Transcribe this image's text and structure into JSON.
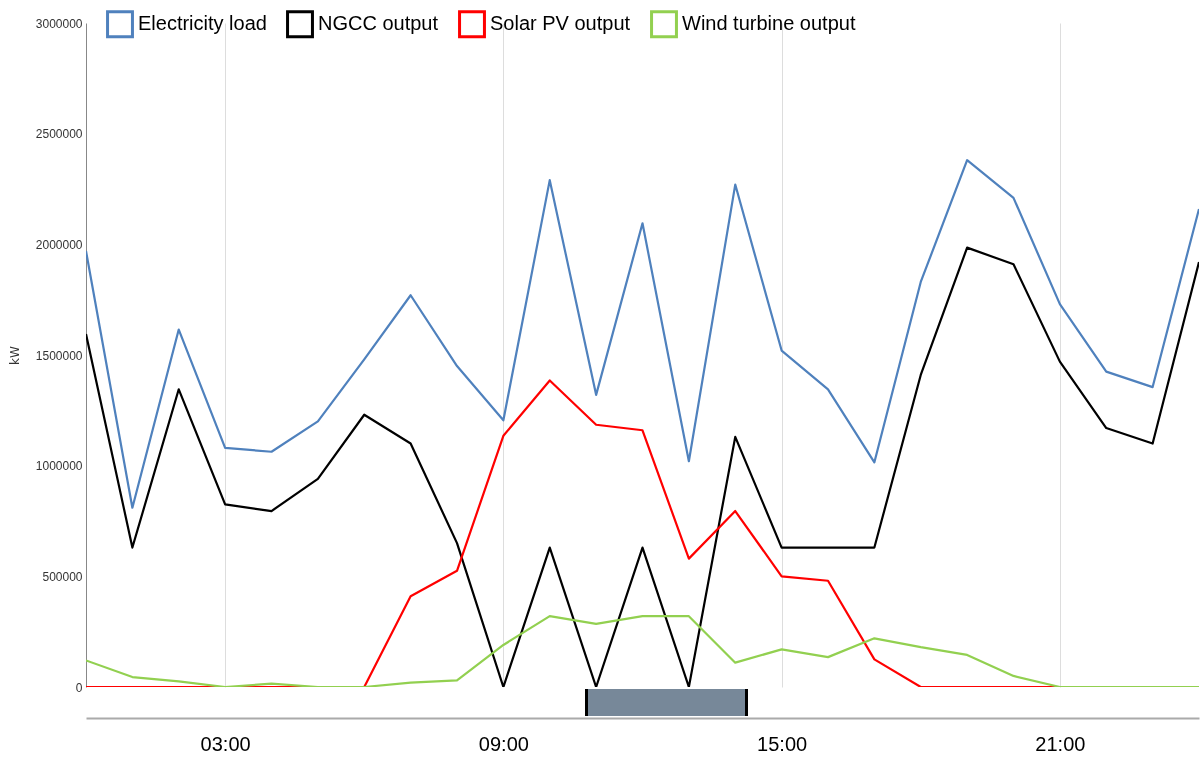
{
  "chart_data": {
    "type": "line",
    "ylabel": "kW",
    "x": [
      0,
      1,
      2,
      3,
      4,
      5,
      6,
      7,
      8,
      9,
      10,
      11,
      12,
      13,
      14,
      15,
      16,
      17,
      18,
      19,
      20,
      21,
      22,
      23,
      24
    ],
    "xlim": [
      0,
      24
    ],
    "xticks": [
      {
        "value": 3,
        "label": "03:00"
      },
      {
        "value": 9,
        "label": "09:00"
      },
      {
        "value": 15,
        "label": "15:00"
      },
      {
        "value": 21,
        "label": "21:00"
      }
    ],
    "ylim": [
      0,
      3000000
    ],
    "yticks": [
      0,
      500000,
      1000000,
      1500000,
      2000000,
      2500000,
      3000000
    ],
    "grid": "x",
    "legend": "top",
    "marker": "none",
    "line_style": "solid",
    "series": [
      {
        "name": "Electricity load",
        "color": "#4f81bd",
        "values": [
          1970000,
          810000,
          1615000,
          1080000,
          1063000,
          1200000,
          1480000,
          1770000,
          1450000,
          1205000,
          2290000,
          1320000,
          2095000,
          1020000,
          2270000,
          1520000,
          1345000,
          1015000,
          1830000,
          2380000,
          2210000,
          1730000,
          1425000,
          1355000,
          2160000
        ]
      },
      {
        "name": "NGCC output",
        "color": "#000000",
        "values": [
          1595000,
          630000,
          1345000,
          825000,
          795000,
          940000,
          1230000,
          1100000,
          650000,
          0,
          630000,
          0,
          630000,
          0,
          1130000,
          630000,
          630000,
          630000,
          1410000,
          1985000,
          1910000,
          1470000,
          1170000,
          1100000,
          1920000
        ]
      },
      {
        "name": "Solar PV output",
        "color": "#ff0000",
        "values": [
          0,
          0,
          0,
          0,
          0,
          0,
          0,
          410000,
          525000,
          1135000,
          1385000,
          1185000,
          1160000,
          580000,
          795000,
          500000,
          480000,
          125000,
          0,
          0,
          0,
          0,
          0,
          null,
          null
        ]
      },
      {
        "name": "Wind turbine output",
        "color": "#92d050",
        "values": [
          120000,
          45000,
          25000,
          0,
          15000,
          0,
          0,
          20000,
          30000,
          190000,
          320000,
          285000,
          320000,
          320000,
          110000,
          170000,
          135000,
          220000,
          180000,
          145000,
          50000,
          0,
          0,
          0,
          0
        ]
      }
    ]
  }
}
